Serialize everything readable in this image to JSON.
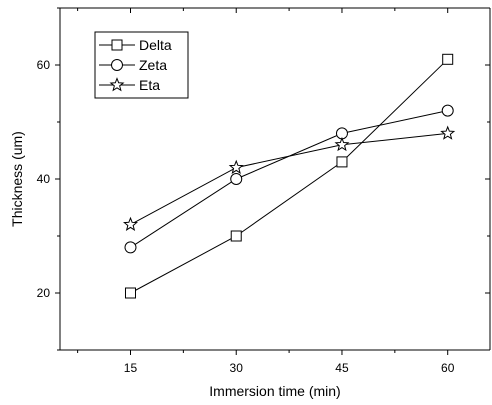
{
  "chart_data": {
    "type": "line",
    "xlabel": "Immersion time (min)",
    "ylabel": "Thickness (um)",
    "x": [
      15,
      30,
      45,
      60
    ],
    "xlim": [
      5,
      66
    ],
    "ylim": [
      10,
      70
    ],
    "xticks": [
      15,
      30,
      45,
      60
    ],
    "yticks": [
      20,
      40,
      60
    ],
    "grid": false,
    "legend_position": "top-left",
    "series": [
      {
        "name": "Delta",
        "marker": "square",
        "values": [
          20,
          30,
          43,
          61
        ]
      },
      {
        "name": "Zeta",
        "marker": "circle",
        "values": [
          28,
          40,
          48,
          52
        ]
      },
      {
        "name": "Eta",
        "marker": "star",
        "values": [
          32,
          42,
          46,
          48
        ]
      }
    ]
  }
}
